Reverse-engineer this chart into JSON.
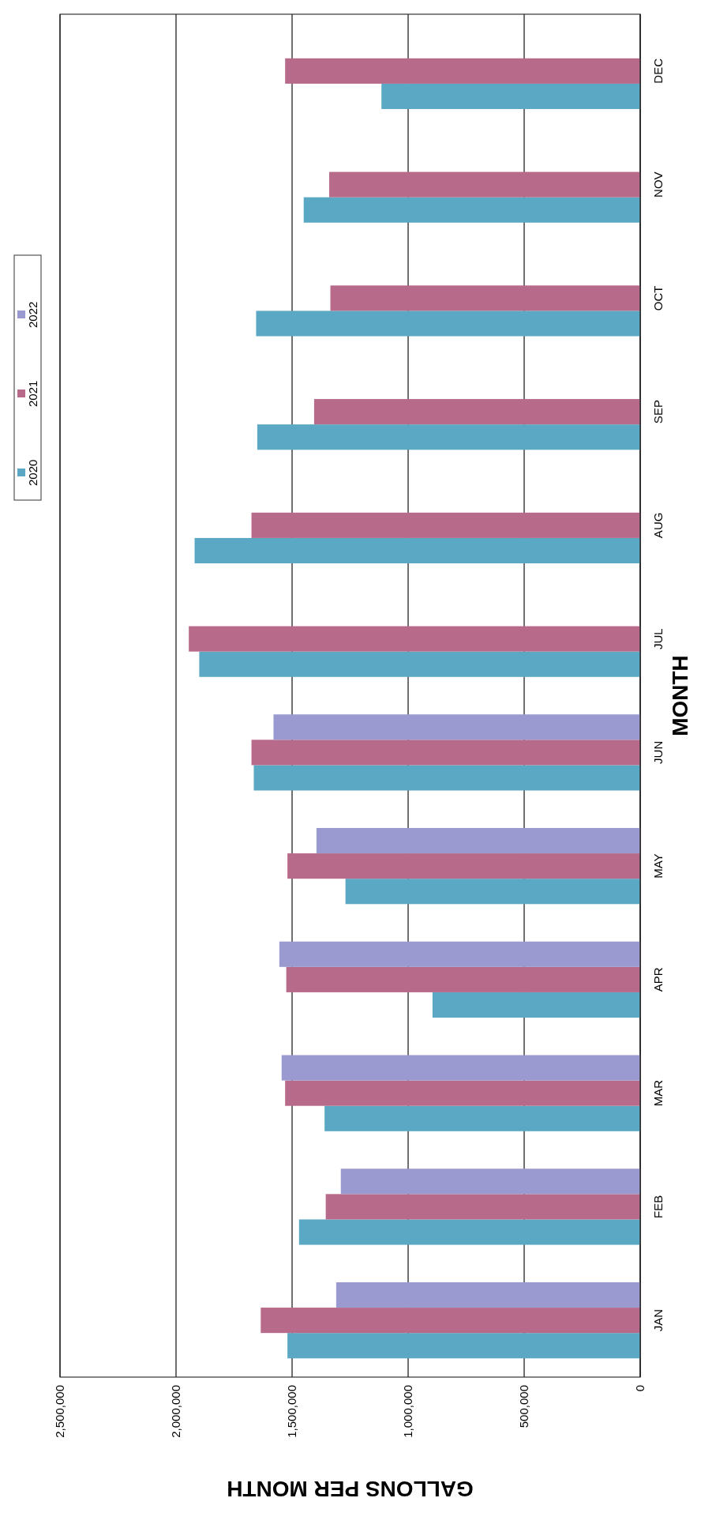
{
  "chart_data": {
    "type": "bar",
    "orientation": "horizontal",
    "xlabel": "GALLONS PER MONTH",
    "ylabel": "MONTH",
    "categories": [
      "DEC",
      "NOV",
      "OCT",
      "SEP",
      "AUG",
      "JUL",
      "JUN",
      "MAY",
      "APR",
      "MAR",
      "FEB",
      "JAN"
    ],
    "series": [
      {
        "name": "2020",
        "color": "#5ba8c4",
        "values": [
          1115000,
          1450000,
          1655000,
          1650000,
          1920000,
          1900000,
          1665000,
          1270000,
          895000,
          1360000,
          1470000,
          1520000
        ]
      },
      {
        "name": "2021",
        "color": "#b86a8a",
        "values": [
          1530000,
          1340000,
          1335000,
          1405000,
          1675000,
          1945000,
          1675000,
          1520000,
          1525000,
          1530000,
          1355000,
          1635000
        ]
      },
      {
        "name": "2022",
        "color": "#9a9ad0",
        "values": [
          null,
          null,
          null,
          null,
          null,
          null,
          1580000,
          1395000,
          1555000,
          1545000,
          1290000,
          1310000
        ]
      }
    ],
    "xlim": [
      2500000,
      0
    ],
    "xticks": [
      {
        "value": 0,
        "label": "0"
      },
      {
        "value": 500000,
        "label": "500,000"
      },
      {
        "value": 1000000,
        "label": "1,000,000"
      },
      {
        "value": 1500000,
        "label": "1,500,000"
      },
      {
        "value": 2000000,
        "label": "2,000,000"
      },
      {
        "value": 2500000,
        "label": "2,500,000"
      }
    ],
    "grid": "x",
    "legend": "top"
  }
}
